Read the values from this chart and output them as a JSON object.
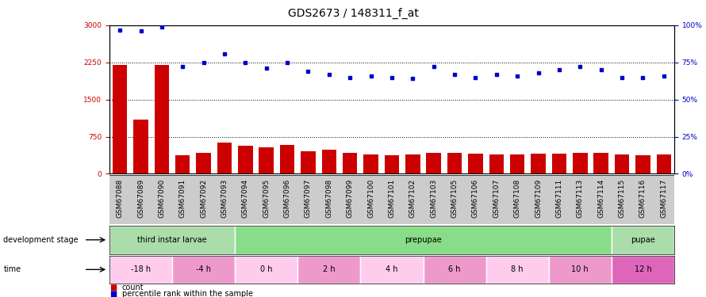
{
  "title": "GDS2673 / 148311_f_at",
  "samples": [
    "GSM67088",
    "GSM67089",
    "GSM67090",
    "GSM67091",
    "GSM67092",
    "GSM67093",
    "GSM67094",
    "GSM67095",
    "GSM67096",
    "GSM67097",
    "GSM67098",
    "GSM67099",
    "GSM67100",
    "GSM67101",
    "GSM67102",
    "GSM67103",
    "GSM67105",
    "GSM67106",
    "GSM67107",
    "GSM67108",
    "GSM67109",
    "GSM67111",
    "GSM67113",
    "GSM67114",
    "GSM67115",
    "GSM67116",
    "GSM67117"
  ],
  "counts": [
    2200,
    1100,
    2200,
    380,
    420,
    630,
    560,
    540,
    590,
    450,
    490,
    420,
    390,
    380,
    390,
    420,
    430,
    400,
    390,
    390,
    400,
    410,
    430,
    420,
    390,
    380,
    390
  ],
  "percentile": [
    97,
    96,
    99,
    72,
    75,
    81,
    75,
    71,
    75,
    69,
    67,
    65,
    66,
    65,
    64,
    72,
    67,
    65,
    67,
    66,
    68,
    70,
    72,
    70,
    65,
    65,
    66
  ],
  "ylim_left": [
    0,
    3000
  ],
  "ylim_right": [
    0,
    100
  ],
  "yticks_left": [
    0,
    750,
    1500,
    2250,
    3000
  ],
  "yticks_right": [
    0,
    25,
    50,
    75,
    100
  ],
  "bar_color": "#cc0000",
  "dot_color": "#0000cc",
  "background_color": "#ffffff",
  "grid_color": "#000000",
  "xtick_bg_color": "#cccccc",
  "dev_stage_row": {
    "label": "development stage",
    "stages": [
      {
        "name": "third instar larvae",
        "start": 0,
        "end": 6,
        "color": "#aaddaa"
      },
      {
        "name": "prepupae",
        "start": 6,
        "end": 24,
        "color": "#88dd88"
      },
      {
        "name": "pupae",
        "start": 24,
        "end": 27,
        "color": "#aaddaa"
      }
    ]
  },
  "time_row": {
    "label": "time",
    "times": [
      {
        "name": "-18 h",
        "start": 0,
        "end": 3,
        "color": "#ffccee"
      },
      {
        "name": "-4 h",
        "start": 3,
        "end": 6,
        "color": "#ee99cc"
      },
      {
        "name": "0 h",
        "start": 6,
        "end": 9,
        "color": "#ffccee"
      },
      {
        "name": "2 h",
        "start": 9,
        "end": 12,
        "color": "#ee99cc"
      },
      {
        "name": "4 h",
        "start": 12,
        "end": 15,
        "color": "#ffccee"
      },
      {
        "name": "6 h",
        "start": 15,
        "end": 18,
        "color": "#ee99cc"
      },
      {
        "name": "8 h",
        "start": 18,
        "end": 21,
        "color": "#ffccee"
      },
      {
        "name": "10 h",
        "start": 21,
        "end": 24,
        "color": "#ee99cc"
      },
      {
        "name": "12 h",
        "start": 24,
        "end": 27,
        "color": "#dd66bb"
      }
    ]
  },
  "legend_count_color": "#cc0000",
  "legend_pct_color": "#0000cc",
  "title_fontsize": 10,
  "tick_fontsize": 6.5,
  "label_fontsize": 8,
  "row_label_fontsize": 7
}
